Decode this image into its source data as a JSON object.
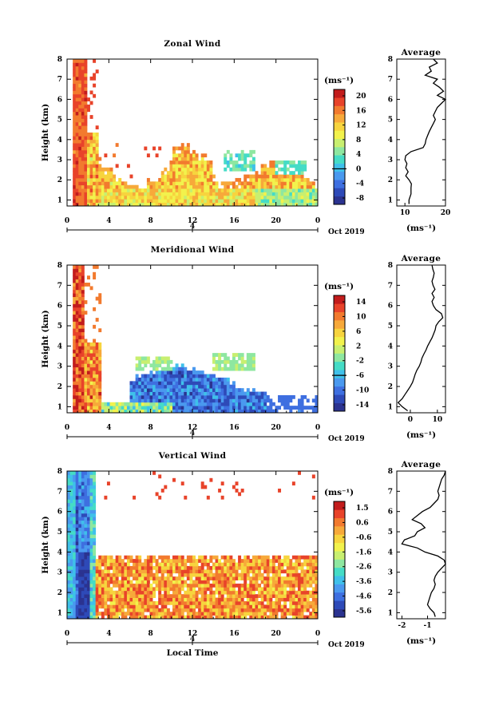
{
  "figure": {
    "date_label": "Oct 2019",
    "day_label": "4",
    "x_axis_label": "Local Time",
    "y_axis_label": "Height (km)",
    "cbar_unit": "(ms⁻¹)",
    "avg_title": "Average",
    "avg_unit": "(ms⁻¹)"
  },
  "colors": [
    "#2b3390",
    "#2e4ab8",
    "#3e6fe0",
    "#4a99ef",
    "#3fc0ea",
    "#45dcc6",
    "#8ee7a0",
    "#c8ef70",
    "#f2f24c",
    "#f7d43e",
    "#f7a93a",
    "#f27a2e",
    "#e8432a",
    "#c21c1c"
  ],
  "chart_data": [
    {
      "type": "heatmap",
      "title": "Zonal Wind",
      "x_ticks": [
        "0",
        "4",
        "8",
        "12",
        "16",
        "20",
        "0"
      ],
      "y_ticks": [
        "1",
        "2",
        "3",
        "4",
        "5",
        "6",
        "7",
        "8"
      ],
      "xlim": [
        0,
        24
      ],
      "ylim": [
        0.7,
        8
      ],
      "cbar_ticks": [
        "20",
        "16",
        "12",
        "8",
        "4",
        "0",
        "-4",
        "-8"
      ],
      "cbar_range": [
        -10,
        22
      ],
      "avg_x_ticks": [
        "10",
        "20"
      ],
      "avg_xlim": [
        8,
        20
      ],
      "average_profile": {
        "height": [
          0.8,
          1.0,
          1.3,
          1.6,
          1.8,
          2.0,
          2.2,
          2.4,
          2.6,
          2.8,
          3.0,
          3.2,
          3.4,
          3.6,
          3.8,
          4.0,
          4.2,
          4.4,
          4.6,
          4.8,
          5.0,
          5.2,
          5.4,
          5.6,
          5.8,
          6.0,
          6.2,
          6.4,
          6.6,
          6.8,
          7.0,
          7.2,
          7.4,
          7.6,
          7.8,
          8.0
        ],
        "value": [
          11,
          11,
          11.5,
          11.5,
          11.6,
          11,
          10.2,
          10.8,
          10.2,
          10.5,
          10,
          10.2,
          11.5,
          14.5,
          15,
          15.2,
          15.6,
          16,
          16.5,
          17,
          17.5,
          17,
          17.5,
          18,
          19,
          20,
          18,
          19.5,
          18.5,
          17,
          18,
          15,
          16.5,
          16,
          18,
          17
        ]
      }
    },
    {
      "type": "heatmap",
      "title": "Meridional Wind",
      "x_ticks": [
        "0",
        "4",
        "8",
        "12",
        "16",
        "20",
        "0"
      ],
      "y_ticks": [
        "1",
        "2",
        "3",
        "4",
        "5",
        "6",
        "7",
        "8"
      ],
      "xlim": [
        0,
        24
      ],
      "ylim": [
        0.7,
        8
      ],
      "cbar_ticks": [
        "14",
        "10",
        "6",
        "2",
        "-2",
        "-6",
        "-10",
        "-14"
      ],
      "cbar_range": [
        -16,
        16
      ],
      "avg_x_ticks": [
        "0",
        "10"
      ],
      "avg_xlim": [
        -5,
        13
      ],
      "average_profile": {
        "height": [
          0.8,
          1.0,
          1.2,
          1.4,
          1.6,
          1.8,
          2.0,
          2.2,
          2.4,
          2.6,
          2.8,
          3.0,
          3.2,
          3.4,
          3.6,
          3.8,
          4.0,
          4.2,
          4.4,
          4.6,
          4.8,
          5.0,
          5.2,
          5.4,
          5.6,
          5.8,
          6.0,
          6.2,
          6.4,
          6.6,
          6.8,
          7.0,
          7.2,
          7.4,
          7.6,
          7.8,
          8.0
        ],
        "value": [
          -1,
          -3,
          -4.5,
          -3,
          -2,
          -1,
          0,
          0.8,
          1.3,
          1.8,
          2.4,
          3.3,
          3.9,
          4.3,
          5,
          5.8,
          6.4,
          7.2,
          8,
          8.6,
          9.2,
          9.5,
          10.5,
          12,
          11.5,
          9.5,
          8.5,
          8,
          8.8,
          8,
          9.1,
          8.4,
          8,
          8.5,
          8.8,
          8.3,
          8
        ]
      }
    },
    {
      "type": "heatmap",
      "title": "Vertical Wind",
      "x_ticks": [
        "0",
        "4",
        "8",
        "12",
        "16",
        "20",
        "0"
      ],
      "y_ticks": [
        "1",
        "2",
        "3",
        "4",
        "5",
        "6",
        "7",
        "8"
      ],
      "xlim": [
        0,
        24
      ],
      "ylim": [
        0.7,
        8
      ],
      "cbar_ticks": [
        "1.5",
        "0.6",
        "-0.6",
        "-1.6",
        "-2.6",
        "-3.6",
        "-4.6",
        "-5.6"
      ],
      "cbar_range": [
        -6,
        2
      ],
      "avg_x_ticks": [
        "-2",
        "-1"
      ],
      "avg_xlim": [
        -2.2,
        -0.3
      ],
      "average_profile": {
        "height": [
          0.8,
          1.0,
          1.2,
          1.4,
          1.6,
          1.8,
          2.0,
          2.2,
          2.4,
          2.6,
          2.8,
          3.0,
          3.2,
          3.4,
          3.6,
          3.8,
          4.0,
          4.2,
          4.4,
          4.6,
          4.8,
          5.0,
          5.2,
          5.4,
          5.6,
          5.8,
          6.0,
          6.2,
          6.4,
          6.6,
          6.8,
          7.0,
          7.2,
          7.4,
          7.6,
          7.8,
          8.0
        ],
        "value": [
          -0.7,
          -0.75,
          -0.9,
          -1.0,
          -0.95,
          -0.9,
          -0.85,
          -0.75,
          -0.7,
          -0.75,
          -0.7,
          -0.6,
          -0.45,
          -0.3,
          -0.35,
          -0.6,
          -1.1,
          -1.4,
          -2.0,
          -1.9,
          -1.5,
          -1.4,
          -1.1,
          -1.25,
          -1.6,
          -1.4,
          -1.2,
          -0.9,
          -0.75,
          -0.6,
          -0.55,
          -0.6,
          -0.55,
          -0.5,
          -0.45,
          -0.35,
          -0.3
        ]
      }
    }
  ]
}
